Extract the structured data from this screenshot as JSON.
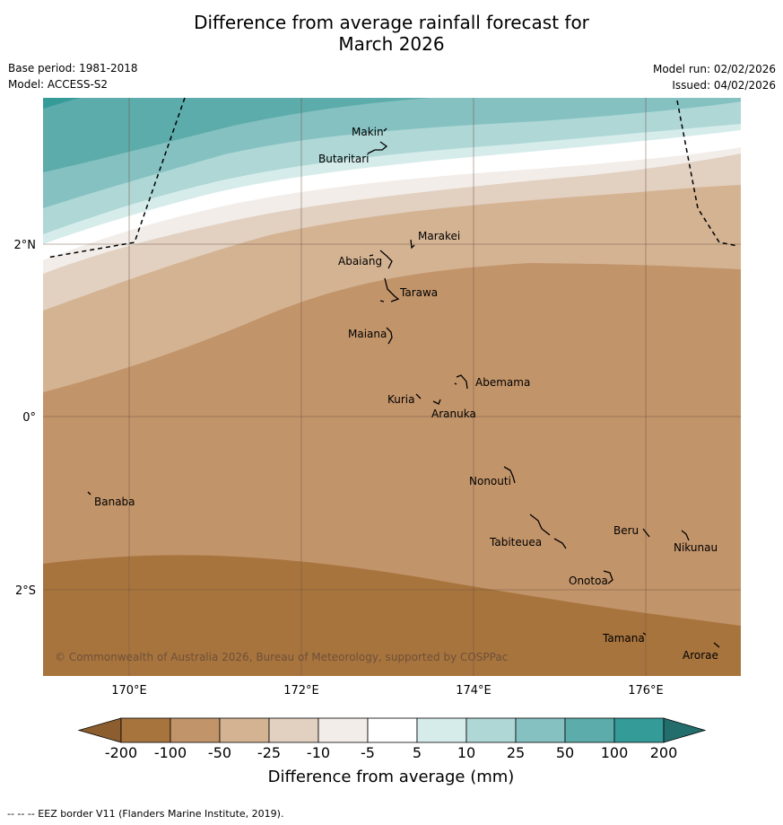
{
  "title": {
    "line1": "Difference from average rainfall forecast for",
    "line2": "March 2026"
  },
  "meta": {
    "base_period": "Base period: 1981-2018",
    "model": "Model: ACCESS-S2",
    "model_run": "Model run: 02/02/2026",
    "issued": "Issued: 04/02/2026"
  },
  "axes": {
    "lon_labels": [
      "170°E",
      "172°E",
      "174°E",
      "176°E"
    ],
    "lat_labels": [
      "2°N",
      "0°",
      "2°S"
    ]
  },
  "places": [
    "Makin",
    "Butaritari",
    "Marakei",
    "Abaiang",
    "Tarawa",
    "Maiana",
    "Abemama",
    "Kuria",
    "Aranuka",
    "Nonouti",
    "Banaba",
    "Beru",
    "Nikunau",
    "Tabiteuea",
    "Onotoa",
    "Tamana",
    "Arorae"
  ],
  "copyright": "© Commonwealth of Australia 2026, Bureau of Meteorology, supported by COSPPac",
  "colorbar": {
    "ticks": [
      "-200",
      "-100",
      "-50",
      "-25",
      "-10",
      "-5",
      "5",
      "10",
      "25",
      "50",
      "100",
      "200"
    ],
    "colors": [
      "#a8743e",
      "#c2946a",
      "#d4b393",
      "#e2d0c0",
      "#f2ede9",
      "#ffffff",
      "#d6eceb",
      "#aed7d6",
      "#85c1c1",
      "#5cacab",
      "#359b99",
      "#2a8584"
    ],
    "under_color": "#8c5d2e",
    "over_color": "#236e6d",
    "label": "Difference from average (mm)"
  },
  "footnote": "--  --  -- EEZ border V11 (Flanders Marine Institute, 2019)."
}
